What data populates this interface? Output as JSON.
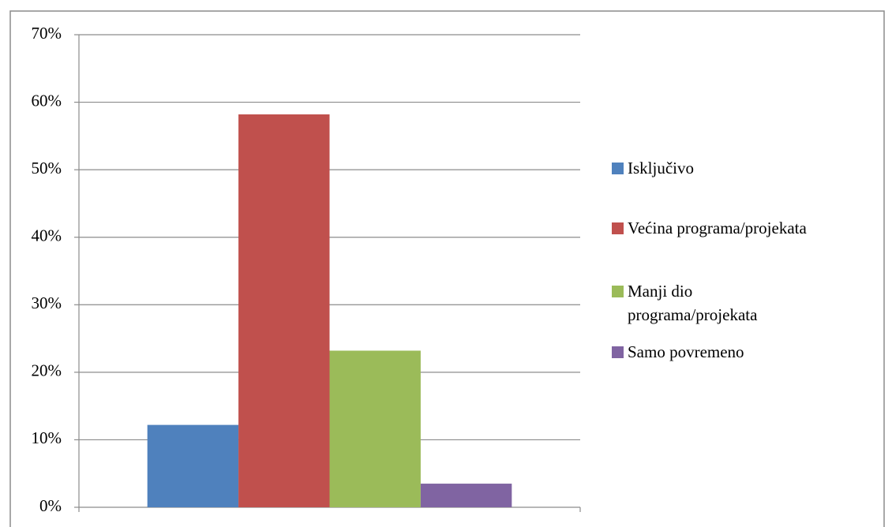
{
  "chart_data": {
    "type": "bar",
    "categories": [
      null
    ],
    "series": [
      {
        "name": "Isključivo",
        "color": "#4f81bd",
        "values": [
          12.2
        ]
      },
      {
        "name": "Većina programa/projekata",
        "color": "#c0504d",
        "values": [
          58.2
        ]
      },
      {
        "name": "Manji dio programa/projekata",
        "color": "#9bbb59",
        "values": [
          23.2
        ]
      },
      {
        "name": "Samo povremeno",
        "color": "#8064a2",
        "values": [
          3.5
        ]
      }
    ],
    "ylim": [
      0,
      70
    ],
    "yticks": [
      {
        "value": 0,
        "label": "0%"
      },
      {
        "value": 10,
        "label": "10%"
      },
      {
        "value": 20,
        "label": "20%"
      },
      {
        "value": 30,
        "label": "30%"
      },
      {
        "value": 40,
        "label": "40%"
      },
      {
        "value": 50,
        "label": "50%"
      },
      {
        "value": 60,
        "label": "60%"
      },
      {
        "value": 70,
        "label": "70%"
      }
    ],
    "grid": true,
    "legend": "right"
  }
}
